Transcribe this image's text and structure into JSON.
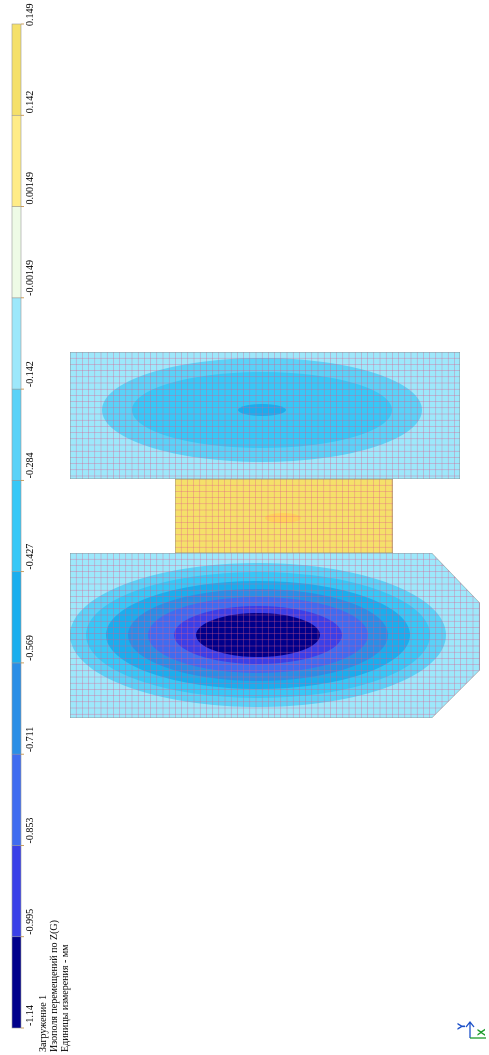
{
  "legend": {
    "colors": [
      "#00008b",
      "#3a40e8",
      "#3f6cf0",
      "#2a8ee6",
      "#1aaeee",
      "#37c8f7",
      "#5ad2f8",
      "#9de8fb",
      "#eefbe6",
      "#ffec87",
      "#f5e06a"
    ],
    "boundaries": [
      "-1.14",
      "-0.995",
      "-0.853",
      "-0.711",
      "-0.569",
      "-0.427",
      "-0.284",
      "-0.142",
      "-0.00149",
      "0.00149",
      "0.142",
      "0.149"
    ]
  },
  "caption": {
    "line1": "Загружение 1",
    "line2": "Изополя  перемещений по Z(G)",
    "line3": "Единицы измерения - мм"
  },
  "axes": {
    "x_label": "X",
    "y_label": "Y",
    "x_color": "#1c9a2a",
    "y_color": "#1c50c8"
  },
  "mesh": {
    "grid_color": "#e05a8a"
  }
}
